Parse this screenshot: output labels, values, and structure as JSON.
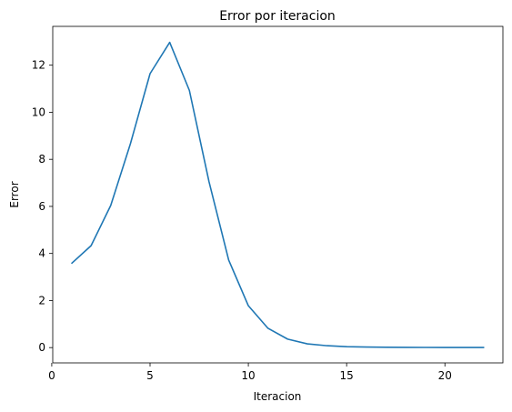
{
  "chart_data": {
    "type": "line",
    "title": "Error por iteracion",
    "xlabel": "Iteracion",
    "ylabel": "Error",
    "xlim": [
      0.05,
      22.95
    ],
    "ylim": [
      -0.65,
      13.65
    ],
    "xticks": [
      0,
      5,
      10,
      15,
      20
    ],
    "yticks": [
      0,
      2,
      4,
      6,
      8,
      10,
      12
    ],
    "grid": false,
    "series": [
      {
        "color": "#1f77b4",
        "x": [
          1,
          2,
          3,
          4,
          5,
          6,
          7,
          8,
          9,
          10,
          11,
          12,
          13,
          14,
          15,
          16,
          17,
          18,
          19,
          20,
          21,
          22
        ],
        "y": [
          3.57,
          4.33,
          6.04,
          8.66,
          11.64,
          12.97,
          10.93,
          7.05,
          3.72,
          1.78,
          0.82,
          0.36,
          0.16,
          0.08,
          0.04,
          0.025,
          0.015,
          0.01,
          0.007,
          0.005,
          0.004,
          0.003
        ]
      }
    ]
  }
}
